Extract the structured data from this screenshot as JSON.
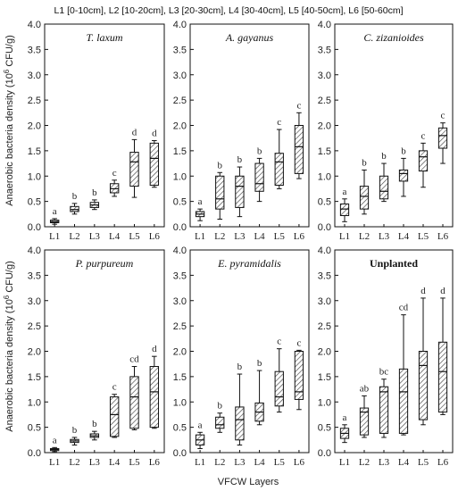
{
  "legend_text": "L1 [0-10cm], L2 [10-20cm], L3 [20-30cm], L4 [30-40cm], L5 [40-50cm], L6 [50-60cm]",
  "ylabel_parts": [
    "Anaerobic bacteria density (10",
    "6",
    " CFU/g)"
  ],
  "xlabel": "VFCW Layers",
  "colors": {
    "box_stroke": "#111111",
    "hatch": "#444444",
    "background": "#ffffff"
  },
  "chart_data": [
    {
      "type": "box",
      "title": "T. laxum",
      "title_style": "italic",
      "categories": [
        "L1",
        "L2",
        "L3",
        "L4",
        "L5",
        "L6"
      ],
      "ylim": [
        0,
        4
      ],
      "yticks": [
        "0.0",
        "0.5",
        "1.0",
        "1.5",
        "2.0",
        "2.5",
        "3.0",
        "3.5",
        "4.0"
      ],
      "boxes": [
        {
          "min": 0.05,
          "q1": 0.08,
          "median": 0.1,
          "q3": 0.13,
          "max": 0.16,
          "letter": "a"
        },
        {
          "min": 0.25,
          "q1": 0.3,
          "median": 0.34,
          "q3": 0.4,
          "max": 0.46,
          "letter": "b"
        },
        {
          "min": 0.34,
          "q1": 0.38,
          "median": 0.43,
          "q3": 0.48,
          "max": 0.53,
          "letter": "b"
        },
        {
          "min": 0.6,
          "q1": 0.67,
          "median": 0.75,
          "q3": 0.85,
          "max": 0.92,
          "letter": "c"
        },
        {
          "min": 0.58,
          "q1": 0.8,
          "median": 1.28,
          "q3": 1.47,
          "max": 1.72,
          "letter": "d"
        },
        {
          "min": 0.78,
          "q1": 0.82,
          "median": 1.35,
          "q3": 1.65,
          "max": 1.7,
          "letter": "d"
        }
      ]
    },
    {
      "type": "box",
      "title": "A. gayanus",
      "title_style": "italic",
      "categories": [
        "L1",
        "L2",
        "L3",
        "L4",
        "L5",
        "L6"
      ],
      "ylim": [
        0,
        4
      ],
      "yticks": [
        "0.0",
        "0.5",
        "1.0",
        "1.5",
        "2.0",
        "2.5",
        "3.0",
        "3.5",
        "4.0"
      ],
      "boxes": [
        {
          "min": 0.12,
          "q1": 0.2,
          "median": 0.25,
          "q3": 0.3,
          "max": 0.35,
          "letter": "a"
        },
        {
          "min": 0.15,
          "q1": 0.35,
          "median": 0.55,
          "q3": 1.0,
          "max": 1.07,
          "letter": "b"
        },
        {
          "min": 0.2,
          "q1": 0.38,
          "median": 0.8,
          "q3": 1.0,
          "max": 1.18,
          "letter": "b"
        },
        {
          "min": 0.5,
          "q1": 0.7,
          "median": 0.85,
          "q3": 1.25,
          "max": 1.35,
          "letter": "b"
        },
        {
          "min": 0.75,
          "q1": 0.82,
          "median": 1.28,
          "q3": 1.45,
          "max": 1.92,
          "letter": "c"
        },
        {
          "min": 0.95,
          "q1": 1.05,
          "median": 1.58,
          "q3": 2.0,
          "max": 2.25,
          "letter": "c"
        }
      ]
    },
    {
      "type": "box",
      "title": "C. zizanioides",
      "title_style": "italic",
      "categories": [
        "L1",
        "L2",
        "L3",
        "L4",
        "L5",
        "L6"
      ],
      "ylim": [
        0,
        4
      ],
      "yticks": [
        "0.0",
        "0.5",
        "1.0",
        "1.5",
        "2.0",
        "2.5",
        "3.0",
        "3.5",
        "4.0"
      ],
      "boxes": [
        {
          "min": 0.1,
          "q1": 0.22,
          "median": 0.35,
          "q3": 0.45,
          "max": 0.55,
          "letter": "a"
        },
        {
          "min": 0.25,
          "q1": 0.35,
          "median": 0.6,
          "q3": 0.8,
          "max": 1.12,
          "letter": "b"
        },
        {
          "min": 0.5,
          "q1": 0.55,
          "median": 0.7,
          "q3": 1.0,
          "max": 1.25,
          "letter": "b"
        },
        {
          "min": 0.6,
          "q1": 0.9,
          "median": 1.05,
          "q3": 1.12,
          "max": 1.35,
          "letter": "b"
        },
        {
          "min": 0.78,
          "q1": 1.1,
          "median": 1.38,
          "q3": 1.5,
          "max": 1.65,
          "letter": "c"
        },
        {
          "min": 1.25,
          "q1": 1.55,
          "median": 1.8,
          "q3": 1.95,
          "max": 2.05,
          "letter": "c"
        }
      ]
    },
    {
      "type": "box",
      "title": "P. purpureum",
      "title_style": "italic",
      "categories": [
        "L1",
        "L2",
        "L3",
        "L4",
        "L5",
        "L6"
      ],
      "ylim": [
        0,
        4
      ],
      "yticks": [
        "0.0",
        "0.5",
        "1.0",
        "1.5",
        "2.0",
        "2.5",
        "3.0",
        "3.5",
        "4.0"
      ],
      "boxes": [
        {
          "min": 0.02,
          "q1": 0.04,
          "median": 0.06,
          "q3": 0.08,
          "max": 0.1,
          "letter": "a"
        },
        {
          "min": 0.15,
          "q1": 0.2,
          "median": 0.23,
          "q3": 0.26,
          "max": 0.3,
          "letter": "b"
        },
        {
          "min": 0.25,
          "q1": 0.3,
          "median": 0.33,
          "q3": 0.37,
          "max": 0.42,
          "letter": "b"
        },
        {
          "min": 0.3,
          "q1": 0.32,
          "median": 0.75,
          "q3": 1.1,
          "max": 1.15,
          "letter": "c"
        },
        {
          "min": 0.45,
          "q1": 0.48,
          "median": 1.1,
          "q3": 1.5,
          "max": 1.7,
          "letter": "cd"
        },
        {
          "min": 0.48,
          "q1": 0.5,
          "median": 1.2,
          "q3": 1.7,
          "max": 1.9,
          "letter": "d"
        }
      ]
    },
    {
      "type": "box",
      "title": "E. pyramidalis",
      "title_style": "italic",
      "categories": [
        "L1",
        "L2",
        "L3",
        "L4",
        "L5",
        "L6"
      ],
      "ylim": [
        0,
        4
      ],
      "yticks": [
        "0.0",
        "0.5",
        "1.0",
        "1.5",
        "2.0",
        "2.5",
        "3.0",
        "3.5",
        "4.0"
      ],
      "boxes": [
        {
          "min": 0.08,
          "q1": 0.15,
          "median": 0.25,
          "q3": 0.35,
          "max": 0.4,
          "letter": "a"
        },
        {
          "min": 0.4,
          "q1": 0.48,
          "median": 0.55,
          "q3": 0.7,
          "max": 0.78,
          "letter": "b"
        },
        {
          "min": 0.15,
          "q1": 0.25,
          "median": 0.65,
          "q3": 0.9,
          "max": 1.55,
          "letter": "b"
        },
        {
          "min": 0.55,
          "q1": 0.62,
          "median": 0.8,
          "q3": 0.98,
          "max": 1.62,
          "letter": "b"
        },
        {
          "min": 0.8,
          "q1": 0.92,
          "median": 1.1,
          "q3": 1.6,
          "max": 2.05,
          "letter": "c"
        },
        {
          "min": 0.85,
          "q1": 1.05,
          "median": 1.2,
          "q3": 2.0,
          "max": 2.02,
          "letter": "c"
        }
      ]
    },
    {
      "type": "box",
      "title": "Unplanted",
      "title_style": "bold",
      "categories": [
        "L1",
        "L2",
        "L3",
        "L4",
        "L5",
        "L6"
      ],
      "ylim": [
        0,
        4
      ],
      "yticks": [
        "0.0",
        "0.5",
        "1.0",
        "1.5",
        "2.0",
        "2.5",
        "3.0",
        "3.5",
        "4.0"
      ],
      "boxes": [
        {
          "min": 0.2,
          "q1": 0.28,
          "median": 0.38,
          "q3": 0.48,
          "max": 0.55,
          "letter": "a"
        },
        {
          "min": 0.3,
          "q1": 0.35,
          "median": 0.8,
          "q3": 0.88,
          "max": 1.12,
          "letter": "ab"
        },
        {
          "min": 0.3,
          "q1": 0.38,
          "median": 1.2,
          "q3": 1.3,
          "max": 1.45,
          "letter": "bc"
        },
        {
          "min": 0.35,
          "q1": 0.38,
          "median": 1.2,
          "q3": 1.65,
          "max": 2.72,
          "letter": "cd"
        },
        {
          "min": 0.55,
          "q1": 0.65,
          "median": 1.72,
          "q3": 2.0,
          "max": 3.05,
          "letter": "d"
        },
        {
          "min": 0.75,
          "q1": 0.8,
          "median": 1.6,
          "q3": 2.18,
          "max": 3.05,
          "letter": "d"
        }
      ]
    }
  ]
}
